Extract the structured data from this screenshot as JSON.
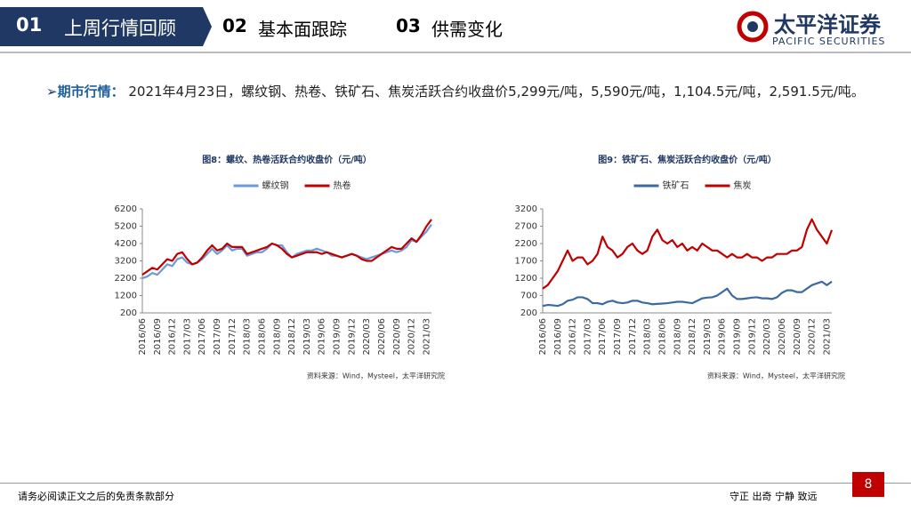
{
  "header": {
    "tabs": [
      {
        "num": "01",
        "label": "上周行情回顾"
      },
      {
        "num": "02",
        "label": "基本面跟踪"
      },
      {
        "num": "03",
        "label": "供需变化"
      }
    ],
    "logo": "太平洋证券",
    "logo_en": "PACIFIC SECURITIES"
  },
  "bullet": {
    "label": "期市行情：",
    "text": "2021年4月23日，螺纹钢、热卷、铁矿石、焦炭活跃合约收盘价5,299元/吨，5,590元/吨，1,104.5元/吨，2,591.5元/吨。"
  },
  "chart_data": [
    {
      "type": "line",
      "title": "图8：螺纹、热卷活跃合约收盘价（元/吨）",
      "source": "资料来源：Wind，Mysteel，太平洋研究院",
      "legend": "top",
      "categories": [
        "2016/06",
        null,
        null,
        "2016/09",
        null,
        null,
        "2016/12",
        null,
        null,
        "2017/03",
        null,
        null,
        "2017/06",
        null,
        null,
        "2017/09",
        null,
        null,
        "2017/12",
        null,
        null,
        "2018/03",
        null,
        null,
        "2018/06",
        null,
        null,
        "2018/09",
        null,
        null,
        "2018/12",
        null,
        null,
        "2019/03",
        null,
        null,
        "2019/06",
        null,
        null,
        "2019/09",
        null,
        null,
        "2019/12",
        null,
        null,
        "2020/03",
        null,
        null,
        "2020/06",
        null,
        null,
        "2020/09",
        null,
        null,
        "2020/12",
        null,
        null,
        "2021/03",
        null
      ],
      "series": [
        {
          "name": "螺纹钢",
          "color": "#6a9bd8",
          "values": [
            2200,
            2300,
            2500,
            2400,
            2700,
            3000,
            2900,
            3300,
            3400,
            3100,
            3000,
            3100,
            3300,
            3600,
            3900,
            3600,
            3800,
            4100,
            3800,
            3900,
            3900,
            3500,
            3600,
            3700,
            3700,
            3900,
            4200,
            4100,
            4100,
            3700,
            3400,
            3600,
            3700,
            3800,
            3800,
            3900,
            3800,
            3700,
            3500,
            3500,
            3400,
            3500,
            3600,
            3500,
            3400,
            3300,
            3400,
            3500,
            3600,
            3700,
            3800,
            3700,
            3800,
            4000,
            4400,
            4300,
            4600,
            4900,
            5299
          ]
        },
        {
          "name": "热卷",
          "color": "#c00000",
          "values": [
            2400,
            2600,
            2800,
            2700,
            3000,
            3300,
            3200,
            3600,
            3700,
            3300,
            3000,
            3100,
            3400,
            3800,
            4100,
            3800,
            3900,
            4200,
            4000,
            4000,
            4000,
            3600,
            3700,
            3800,
            3900,
            4000,
            4200,
            4100,
            3900,
            3600,
            3400,
            3500,
            3600,
            3700,
            3700,
            3700,
            3600,
            3700,
            3600,
            3500,
            3400,
            3500,
            3600,
            3500,
            3300,
            3200,
            3200,
            3400,
            3600,
            3800,
            4000,
            3900,
            3900,
            4200,
            4500,
            4300,
            4700,
            5200,
            5590
          ]
        }
      ],
      "ylim": [
        200,
        6200
      ],
      "yticks": [
        200,
        1200,
        2200,
        3200,
        4200,
        5200,
        6200
      ]
    },
    {
      "type": "line",
      "title": "图9：铁矿石、焦炭活跃合约收盘价（元/吨）",
      "source": "资料来源：Wind，Mysteel，太平洋研究院",
      "legend": "top",
      "categories": [
        "2016/06",
        null,
        null,
        "2016/09",
        null,
        null,
        "2016/12",
        null,
        null,
        "2017/03",
        null,
        null,
        "2017/06",
        null,
        null,
        "2017/09",
        null,
        null,
        "2017/12",
        null,
        null,
        "2018/03",
        null,
        null,
        "2018/06",
        null,
        null,
        "2018/09",
        null,
        null,
        "2018/12",
        null,
        null,
        "2019/03",
        null,
        null,
        "2019/06",
        null,
        null,
        "2019/09",
        null,
        null,
        "2019/12",
        null,
        null,
        "2020/03",
        null,
        null,
        "2020/06",
        null,
        null,
        "2020/09",
        null,
        null,
        "2020/12",
        null,
        null,
        "2021/03",
        null
      ],
      "series": [
        {
          "name": "铁矿石",
          "color": "#3c6aa0",
          "values": [
            400,
            430,
            420,
            400,
            450,
            550,
            580,
            650,
            650,
            600,
            480,
            480,
            450,
            520,
            550,
            500,
            480,
            500,
            550,
            550,
            500,
            480,
            450,
            460,
            470,
            480,
            500,
            520,
            520,
            500,
            480,
            550,
            620,
            640,
            650,
            700,
            800,
            900,
            700,
            600,
            600,
            620,
            640,
            650,
            620,
            620,
            600,
            650,
            780,
            850,
            850,
            800,
            800,
            900,
            1000,
            1050,
            1100,
            1000,
            1104.5
          ]
        },
        {
          "name": "焦炭",
          "color": "#c00000",
          "values": [
            900,
            1000,
            1200,
            1400,
            1700,
            2000,
            1700,
            1800,
            1800,
            1600,
            1700,
            1900,
            2400,
            2100,
            2000,
            1800,
            1900,
            2100,
            2200,
            2000,
            1900,
            2000,
            2400,
            2600,
            2300,
            2200,
            2300,
            2100,
            2200,
            2000,
            2100,
            2000,
            2200,
            2100,
            2000,
            2000,
            1900,
            1800,
            1900,
            1800,
            1800,
            1900,
            1800,
            1800,
            1700,
            1800,
            1800,
            1900,
            1900,
            1900,
            2000,
            2000,
            2100,
            2600,
            2900,
            2600,
            2400,
            2200,
            2591.5
          ]
        }
      ],
      "ylim": [
        200,
        3200
      ],
      "yticks": [
        200,
        700,
        1200,
        1700,
        2200,
        2700,
        3200
      ]
    }
  ],
  "footer": {
    "disclaimer": "请务必阅读正文之后的免责条款部分",
    "motto": "守正 出奇 宁静 致远",
    "page": "8"
  }
}
